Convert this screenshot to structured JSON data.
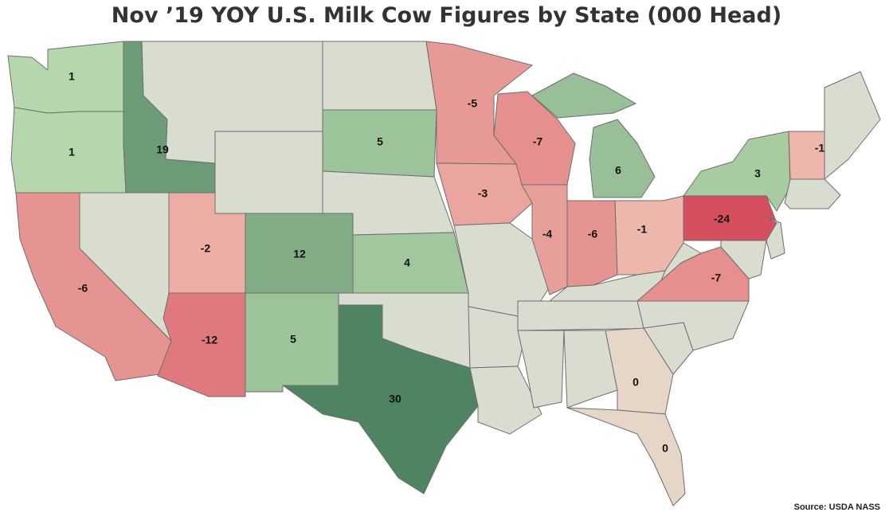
{
  "title": "Nov ’19 YOY U.S. Milk Cow Figures by State (000 Head)",
  "source": "Source: USDA NASS",
  "colors": {
    "neutral": "#d8ddcf",
    "water": "#ffffff",
    "pos_max": "#4e8462",
    "neg_max": "#d64f5f",
    "zero": "#e6d6c8"
  },
  "map_data": {
    "type": "choropleth",
    "scale_max": 30,
    "scale_min": -24,
    "states": [
      {
        "code": "WA",
        "value": 1
      },
      {
        "code": "OR",
        "value": 1
      },
      {
        "code": "ID",
        "value": 19
      },
      {
        "code": "CA",
        "value": -6
      },
      {
        "code": "UT",
        "value": -2
      },
      {
        "code": "AZ",
        "value": -12
      },
      {
        "code": "CO",
        "value": 12
      },
      {
        "code": "NM",
        "value": 5
      },
      {
        "code": "TX",
        "value": 30
      },
      {
        "code": "SD",
        "value": 5
      },
      {
        "code": "KS",
        "value": 4
      },
      {
        "code": "MN",
        "value": -5
      },
      {
        "code": "IA",
        "value": -3
      },
      {
        "code": "WI",
        "value": -7
      },
      {
        "code": "IL",
        "value": -4
      },
      {
        "code": "MI",
        "value": 6
      },
      {
        "code": "IN",
        "value": -6
      },
      {
        "code": "OH",
        "value": -1
      },
      {
        "code": "PA",
        "value": -24
      },
      {
        "code": "NY",
        "value": 3
      },
      {
        "code": "VT",
        "value": -1
      },
      {
        "code": "VA",
        "value": -7
      },
      {
        "code": "GA",
        "value": 0
      },
      {
        "code": "FL",
        "value": 0
      }
    ]
  }
}
